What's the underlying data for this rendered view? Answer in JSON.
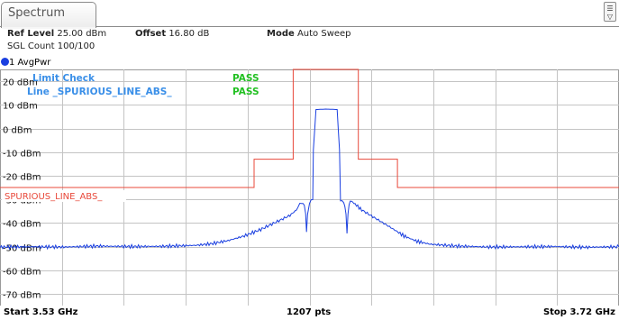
{
  "tab": {
    "label": "Spectrum"
  },
  "header": {
    "ref_level_label": "Ref Level",
    "ref_level_value": "25.00 dBm",
    "offset_label": "Offset",
    "offset_value": "16.80 dB",
    "mode_label": "Mode",
    "mode_value": "Auto Sweep",
    "sgl_count": "SGL Count 100/100"
  },
  "trace": {
    "label": "1 AvgPwr",
    "color": "#1a3fe0"
  },
  "limit": {
    "check_label": "Limit Check",
    "check_result": "PASS",
    "line_label": "Line _SPURIOUS_LINE_ABS_",
    "line_result": "PASS",
    "line_name": "SPURIOUS_LINE_ABS_",
    "pass_color": "#22c022",
    "line_color": "#e8483a"
  },
  "chart_data": {
    "type": "line",
    "ylabels": [
      "20 dBm",
      "10 dBm",
      "0 dBm",
      "-10 dBm",
      "-20 dBm",
      "-30 dBm",
      "-40 dBm",
      "-50 dBm",
      "-60 dBm",
      "-70 dBm"
    ],
    "ylim": [
      -75,
      25
    ],
    "xlim_ghz": [
      3.53,
      3.72
    ],
    "grid": true,
    "start_label": "Start 3.53 GHz",
    "points_label": "1207 pts",
    "stop_label": "Stop 3.72 GHz",
    "trace_points": [
      [
        3.53,
        -50.2
      ],
      [
        3.54,
        -50.1
      ],
      [
        3.55,
        -50.2
      ],
      [
        3.56,
        -49.8
      ],
      [
        3.57,
        -50.0
      ],
      [
        3.58,
        -49.9
      ],
      [
        3.59,
        -49.5
      ],
      [
        3.595,
        -48.8
      ],
      [
        3.6,
        -47.5
      ],
      [
        3.605,
        -45.5
      ],
      [
        3.61,
        -42.8
      ],
      [
        3.613,
        -40.8
      ],
      [
        3.616,
        -38.8
      ],
      [
        3.619,
        -36.8
      ],
      [
        3.621,
        -34.5
      ],
      [
        3.622,
        -32.0
      ],
      [
        3.623,
        -31.0
      ],
      [
        3.6238,
        -35.5
      ],
      [
        3.6241,
        -44.0
      ],
      [
        3.6244,
        -36.0
      ],
      [
        3.625,
        -31.8
      ],
      [
        3.6255,
        -30.8
      ],
      [
        3.626,
        -30.5
      ],
      [
        3.6262,
        -9.0
      ],
      [
        3.627,
        8.0
      ],
      [
        3.63,
        8.2
      ],
      [
        3.6335,
        8.0
      ],
      [
        3.6342,
        -9.0
      ],
      [
        3.6345,
        -31.0
      ],
      [
        3.6355,
        -31.0
      ],
      [
        3.6362,
        -36.0
      ],
      [
        3.6365,
        -44.5
      ],
      [
        3.6368,
        -35.5
      ],
      [
        3.6375,
        -30.5
      ],
      [
        3.639,
        -32.0
      ],
      [
        3.641,
        -34.5
      ],
      [
        3.644,
        -37.0
      ],
      [
        3.647,
        -39.5
      ],
      [
        3.65,
        -42.0
      ],
      [
        3.654,
        -45.5
      ],
      [
        3.658,
        -47.8
      ],
      [
        3.662,
        -49.0
      ],
      [
        3.67,
        -49.8
      ],
      [
        3.68,
        -50.2
      ],
      [
        3.69,
        -50.1
      ],
      [
        3.7,
        -50.0
      ],
      [
        3.71,
        -50.3
      ],
      [
        3.72,
        -50.1
      ]
    ],
    "limit_line": [
      [
        3.53,
        -25.0
      ],
      [
        3.608,
        -25.0
      ],
      [
        3.608,
        -13.0
      ],
      [
        3.62,
        -13.0
      ],
      [
        3.62,
        25.0
      ],
      [
        3.64,
        25.0
      ],
      [
        3.64,
        -13.0
      ],
      [
        3.652,
        -13.0
      ],
      [
        3.652,
        -25.0
      ],
      [
        3.72,
        -25.0
      ]
    ]
  }
}
